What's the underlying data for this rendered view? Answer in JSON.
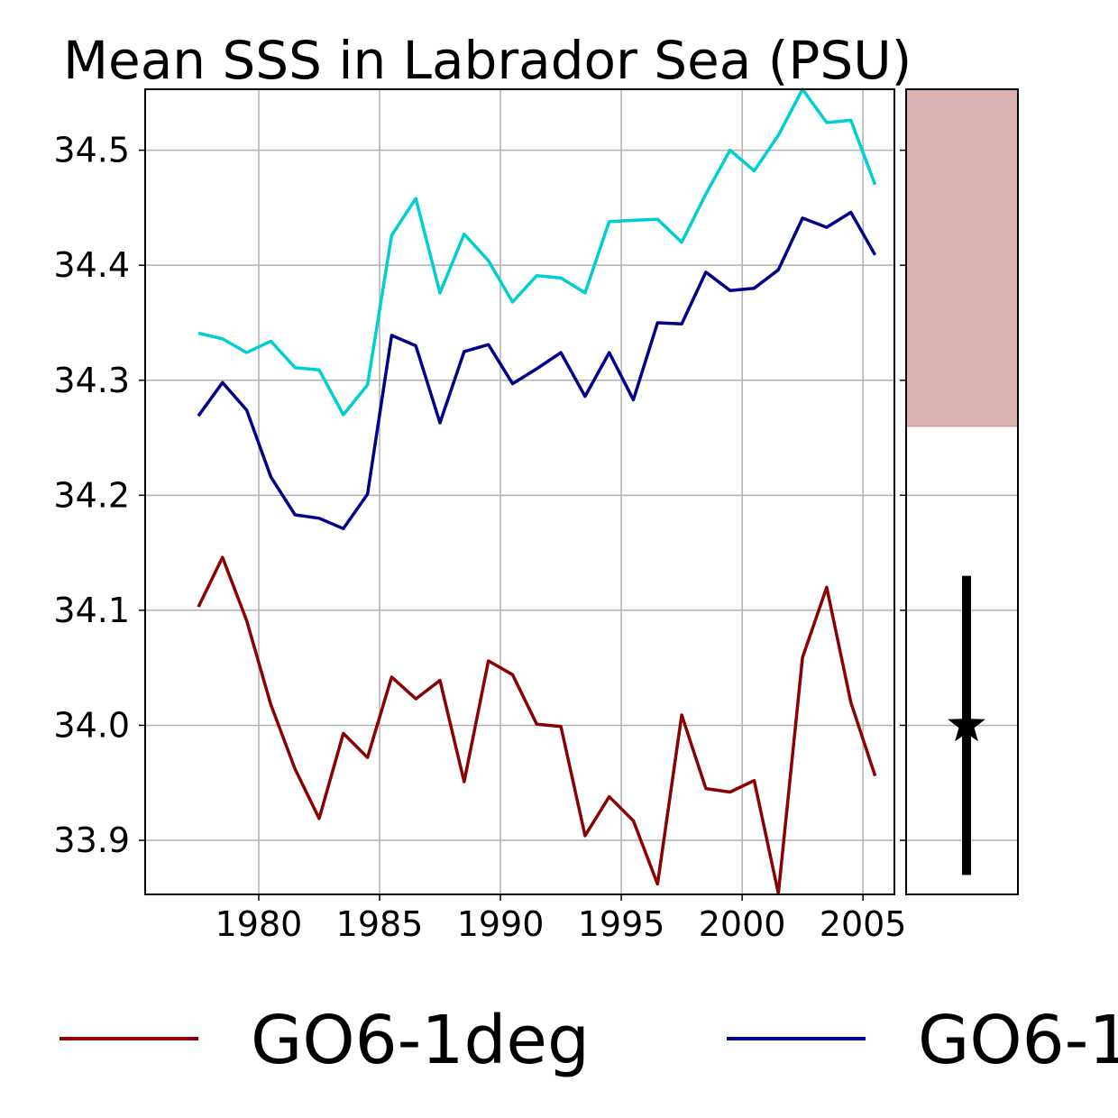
{
  "chart_data": {
    "type": "line",
    "title": "Mean SSS in Labrador Sea (PSU)",
    "xlabel": "",
    "ylabel": "",
    "xlim": [
      1975.3,
      2006.3
    ],
    "ylim": [
      33.853,
      34.553
    ],
    "grid": true,
    "x_ticks": [
      "1980",
      "1985",
      "1990",
      "1995",
      "2000",
      "2005"
    ],
    "y_ticks": [
      "33.9",
      "34.0",
      "34.1",
      "34.2",
      "34.3",
      "34.4",
      "34.5"
    ],
    "x": [
      1977.5,
      1978.5,
      1979.5,
      1980.5,
      1981.5,
      1982.5,
      1983.5,
      1984.5,
      1985.5,
      1986.5,
      1987.5,
      1988.5,
      1989.5,
      1990.5,
      1991.5,
      1992.5,
      1993.5,
      1994.5,
      1995.5,
      1996.5,
      1997.5,
      1998.5,
      1999.5,
      2000.5,
      2001.5,
      2002.5,
      2003.5,
      2004.5,
      2005.5
    ],
    "series": [
      {
        "name": "GO6-1deg",
        "color": "#8b0000",
        "values": [
          34.103,
          34.146,
          34.091,
          34.018,
          33.962,
          33.919,
          33.993,
          33.972,
          34.042,
          34.023,
          34.039,
          33.951,
          34.056,
          34.044,
          34.001,
          33.999,
          33.904,
          33.938,
          33.917,
          33.862,
          34.009,
          33.945,
          33.942,
          33.952,
          33.854,
          34.059,
          34.12,
          34.02,
          33.956
        ]
      },
      {
        "name": "GO6-1",
        "color": "#00008b",
        "values": [
          34.269,
          34.298,
          34.274,
          34.216,
          34.183,
          34.18,
          34.171,
          34.201,
          34.339,
          34.33,
          34.263,
          34.325,
          34.331,
          34.297,
          34.31,
          34.324,
          34.286,
          34.324,
          34.283,
          34.35,
          34.349,
          34.394,
          34.378,
          34.38,
          34.396,
          34.441,
          34.433,
          34.446,
          34.409
        ]
      },
      {
        "color": "#00ced1",
        "values": [
          34.341,
          34.336,
          34.324,
          34.334,
          34.311,
          34.309,
          34.27,
          34.296,
          34.426,
          34.458,
          34.376,
          34.427,
          34.404,
          34.368,
          34.391,
          34.389,
          34.376,
          34.438,
          34.439,
          34.44,
          34.42,
          34.462,
          34.5,
          34.482,
          34.513,
          34.553,
          34.524,
          34.526,
          34.47
        ]
      }
    ],
    "side_panel": {
      "shaded_range": [
        34.26,
        34.553
      ],
      "shade_color": "#dbb2b2",
      "errorbar": {
        "low": 33.87,
        "high": 34.13,
        "center": 34.0
      },
      "marker": "star"
    },
    "legend": {
      "placement": "bottom",
      "entries": [
        "GO6-1deg",
        "GO6-1"
      ]
    }
  }
}
